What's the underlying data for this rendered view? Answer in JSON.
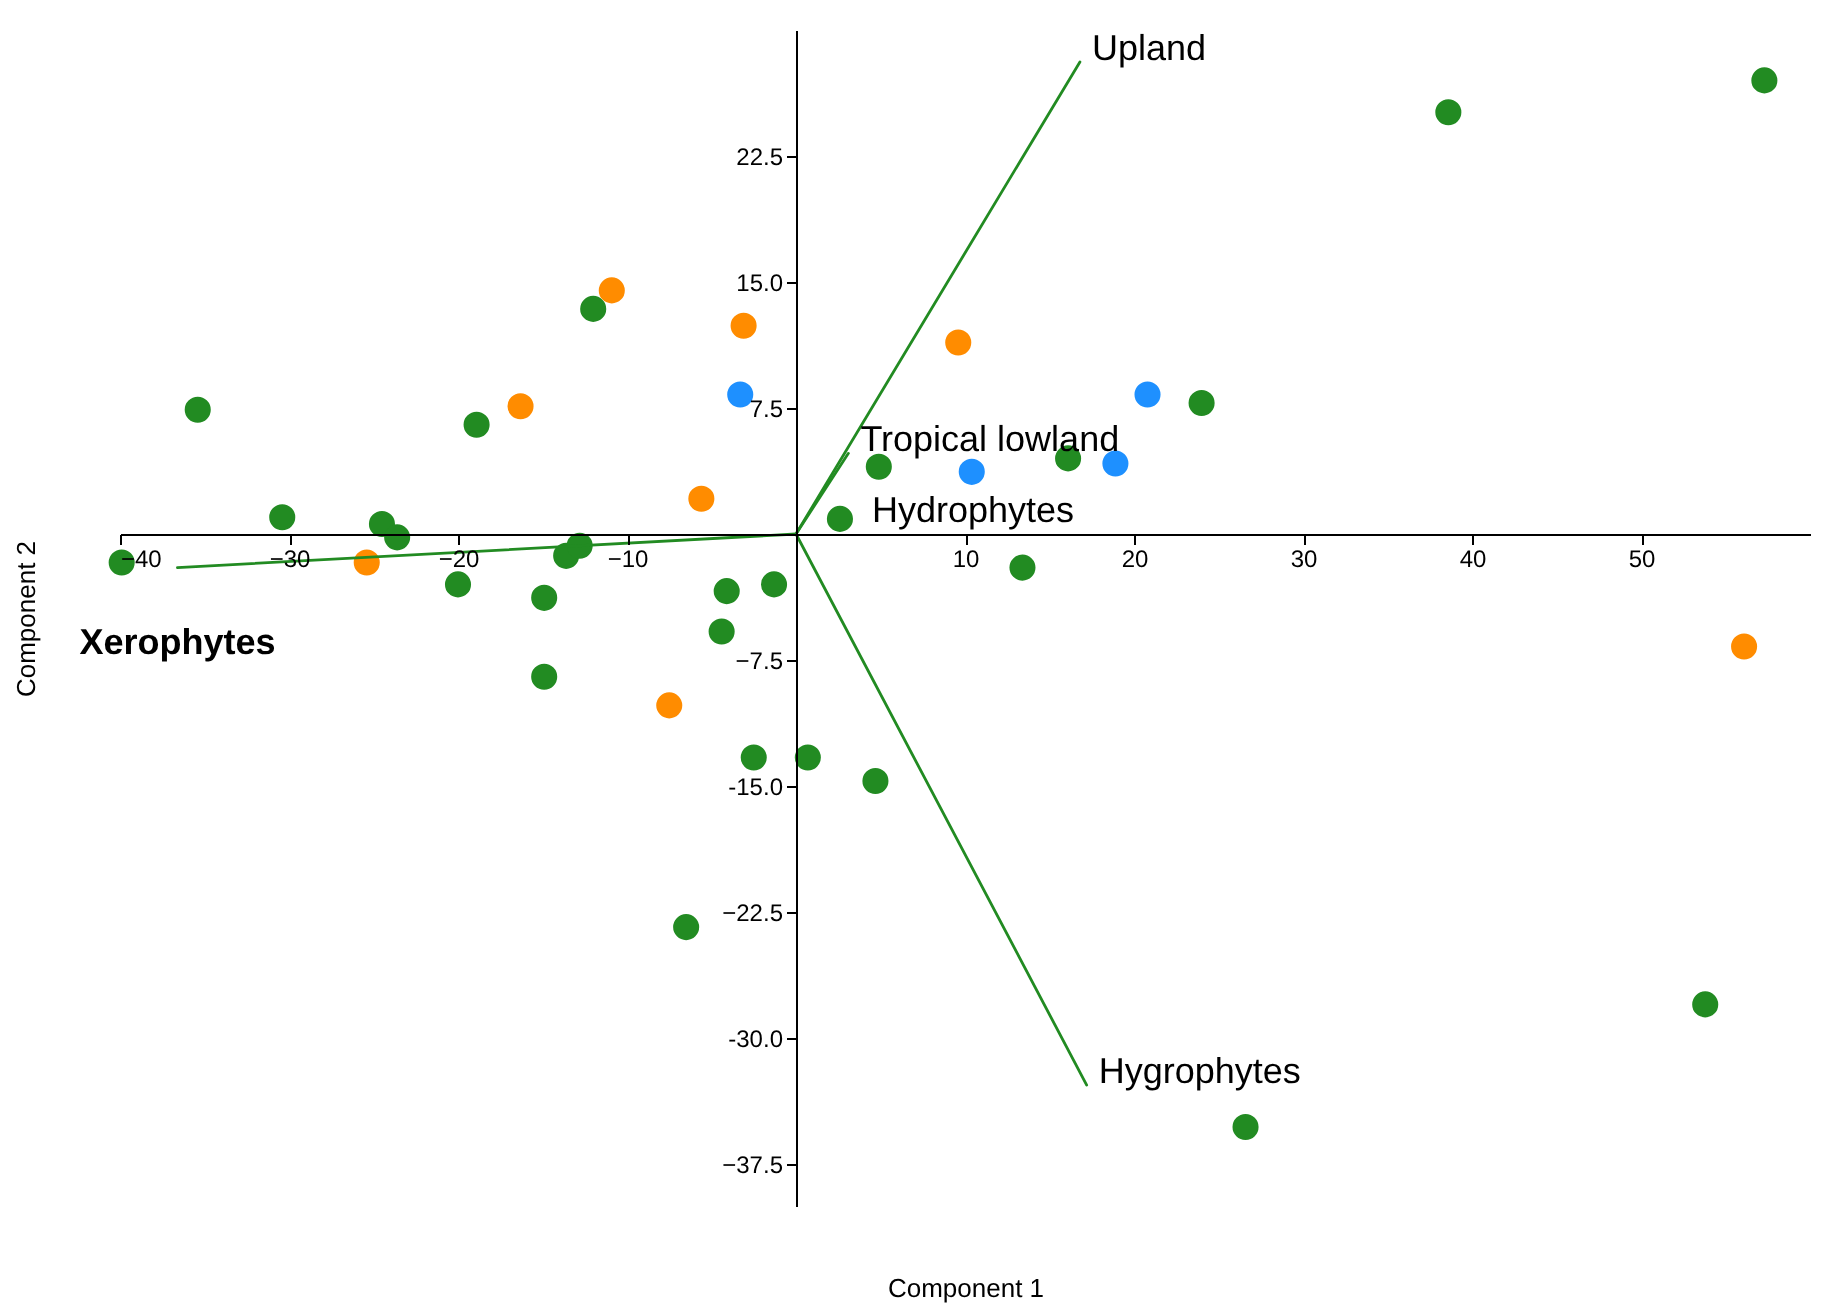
{
  "chart_data": {
    "type": "scatter",
    "xlabel": "Component 1",
    "ylabel": "Component 2",
    "xlim": [
      -40,
      60
    ],
    "ylim": [
      -40,
      30
    ],
    "xticks": [
      -40,
      -30,
      -20,
      -10,
      10,
      20,
      30,
      40,
      50
    ],
    "yticks": [
      22.5,
      {
        "value": 15,
        "label": "15.0"
      },
      7.5,
      -7.5,
      {
        "value": -15,
        "label": "-15.0"
      },
      -22.5,
      {
        "value": -30,
        "label": "-30.0"
      },
      -37.5
    ],
    "grid": false,
    "marker": "circle",
    "annotations": [
      "Hydrophytes"
    ],
    "series": [
      {
        "color": "#228b22",
        "x": [
          -39.9,
          -35.4,
          -30.4,
          -24.5,
          -23.6,
          -20,
          -18.9,
          -14.9,
          -14.9,
          -13.6,
          -12.8,
          -12,
          -4.1,
          -4.4,
          -1.3,
          -2.5,
          0.7,
          -6.5,
          2.6,
          4.9,
          4.7,
          13.4,
          16.1,
          24,
          38.6,
          57.3,
          53.8,
          26.6
        ],
        "values": [
          -1.7,
          7.4,
          1,
          0.6,
          -0.2,
          -3,
          6.5,
          -3.8,
          -8.5,
          -1.3,
          -0.7,
          13.4,
          -3.4,
          -5.8,
          -3,
          -13.3,
          -13.3,
          -23.4,
          0.9,
          4,
          -14.7,
          -2,
          4.5,
          7.8,
          25.1,
          27,
          -28,
          -35.3
        ]
      },
      {
        "color": "#ff8c00",
        "x": [
          -10.9,
          -3.1,
          -16.3,
          -5.6,
          -25.4,
          -7.5,
          9.6,
          56.1
        ],
        "values": [
          14.5,
          12.4,
          7.6,
          2.1,
          -1.7,
          -10.2,
          11.4,
          -6.7
        ]
      },
      {
        "color": "#1e90ff",
        "x": [
          -3.3,
          10.4,
          20.8,
          18.9
        ],
        "values": [
          8.3,
          3.7,
          8.3,
          4.2
        ]
      },
      {
        "type": "line",
        "marker": "none",
        "name": "Upland",
        "color": "#228b22",
        "x": [
          0,
          16.8
        ],
        "values": [
          0,
          28.1
        ]
      },
      {
        "type": "line",
        "marker": "none",
        "name": "Tropical lowland",
        "color": "#228b22",
        "x": [
          0,
          3.1
        ],
        "values": [
          0,
          4.8
        ]
      },
      {
        "type": "line",
        "marker": "none",
        "name": "Hygrophytes",
        "color": "#228b22",
        "x": [
          0,
          17.2
        ],
        "values": [
          0,
          -32.8
        ]
      },
      {
        "type": "line",
        "marker": "none",
        "name": "Xerophytes",
        "color": "#228b22",
        "x": [
          0,
          -36.6
        ],
        "values": [
          0,
          -2
        ]
      }
    ]
  }
}
